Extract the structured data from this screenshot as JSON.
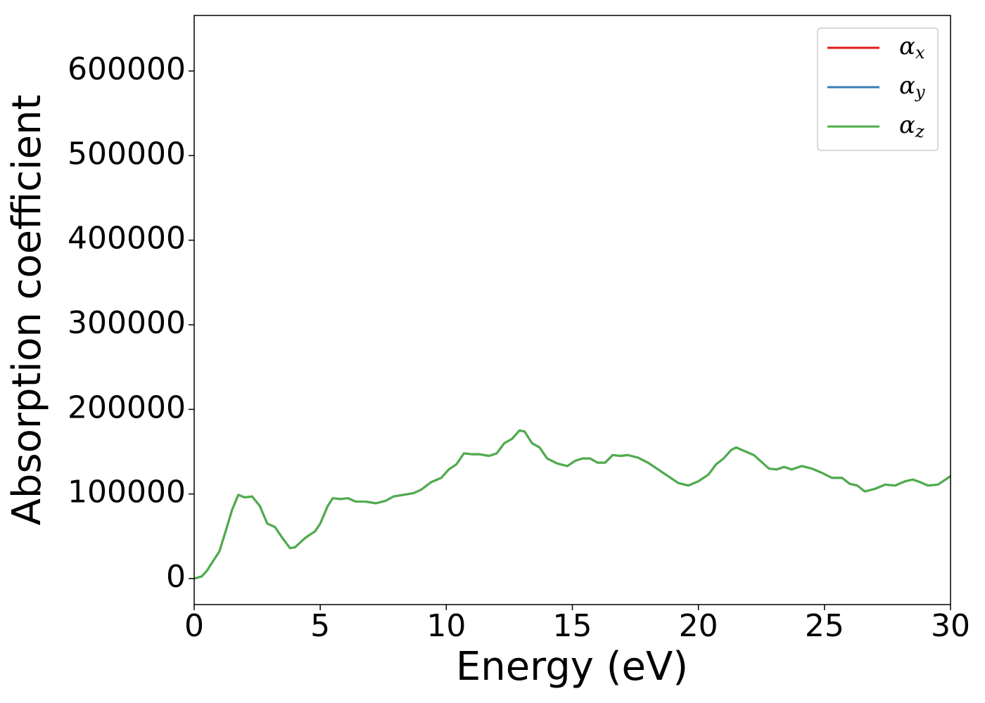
{
  "chart_data": {
    "type": "line",
    "xlabel": "Energy (eV)",
    "ylabel": "Absorption coefficient",
    "x": [
      0,
      0.3,
      0.5,
      0.8,
      1.0,
      1.3,
      1.5,
      1.75,
      2.0,
      2.3,
      2.6,
      2.9,
      3.2,
      3.5,
      3.8,
      4.0,
      4.4,
      4.8,
      5.0,
      5.3,
      5.5,
      5.8,
      6.1,
      6.4,
      6.8,
      7.2,
      7.6,
      7.9,
      8.3,
      8.7,
      9.0,
      9.4,
      9.8,
      10.1,
      10.4,
      10.7,
      11.0,
      11.3,
      11.7,
      12.0,
      12.3,
      12.6,
      12.9,
      13.1,
      13.4,
      13.7,
      14.0,
      14.4,
      14.8,
      15.1,
      15.4,
      15.7,
      16.0,
      16.3,
      16.6,
      16.9,
      17.2,
      17.6,
      18.0,
      18.4,
      18.8,
      19.2,
      19.6,
      20.0,
      20.4,
      20.7,
      21.0,
      21.3,
      21.5,
      21.8,
      22.2,
      22.5,
      22.8,
      23.1,
      23.4,
      23.7,
      24.1,
      24.5,
      24.9,
      25.3,
      25.7,
      26.0,
      26.3,
      26.6,
      27.0,
      27.4,
      27.8,
      28.2,
      28.5,
      28.8,
      29.1,
      29.5,
      30.0
    ],
    "series": [
      {
        "name": "αx",
        "color": "#e41a1c",
        "values": [
          0,
          2500,
          9000,
          23000,
          32000,
          61000,
          81000,
          99000,
          96000,
          97000,
          86000,
          65000,
          61000,
          48000,
          36000,
          37000,
          48000,
          56000,
          65000,
          86000,
          95000,
          94000,
          95000,
          91000,
          91000,
          89000,
          92000,
          97000,
          99000,
          101000,
          105000,
          114000,
          119000,
          129000,
          135000,
          148000,
          147000,
          147000,
          145000,
          148000,
          160000,
          165000,
          175000,
          174000,
          160000,
          155000,
          142000,
          136000,
          133000,
          139000,
          142000,
          142000,
          137000,
          137000,
          146000,
          145000,
          146000,
          143000,
          137000,
          129000,
          121000,
          113000,
          110000,
          115000,
          123000,
          135000,
          142000,
          152000,
          155000,
          151000,
          146000,
          138000,
          130000,
          129000,
          132000,
          129000,
          133000,
          130000,
          125000,
          119000,
          119000,
          112000,
          110000,
          103000,
          106000,
          111000,
          110000,
          115000,
          117000,
          114000,
          110000,
          111000,
          121000
        ]
      },
      {
        "name": "αy",
        "color": "#377eb8",
        "values": [
          0,
          2500,
          9000,
          23000,
          32000,
          61000,
          81000,
          99000,
          96000,
          97000,
          86000,
          65000,
          61000,
          48000,
          36000,
          37000,
          48000,
          56000,
          65000,
          86000,
          95000,
          94000,
          95000,
          91000,
          91000,
          89000,
          92000,
          97000,
          99000,
          101000,
          105000,
          114000,
          119000,
          129000,
          135000,
          148000,
          147000,
          147000,
          145000,
          148000,
          160000,
          165000,
          175000,
          174000,
          160000,
          155000,
          142000,
          136000,
          133000,
          139000,
          142000,
          142000,
          137000,
          137000,
          146000,
          145000,
          146000,
          143000,
          137000,
          129000,
          121000,
          113000,
          110000,
          115000,
          123000,
          135000,
          142000,
          152000,
          155000,
          151000,
          146000,
          138000,
          130000,
          129000,
          132000,
          129000,
          133000,
          130000,
          125000,
          119000,
          119000,
          112000,
          110000,
          103000,
          106000,
          111000,
          110000,
          115000,
          117000,
          114000,
          110000,
          111000,
          121000
        ]
      },
      {
        "name": "αz",
        "color": "#4daf4a",
        "values": [
          0,
          2500,
          9000,
          23000,
          32000,
          61000,
          81000,
          99000,
          96000,
          97000,
          86000,
          65000,
          61000,
          48000,
          36000,
          37000,
          48000,
          56000,
          65000,
          86000,
          95000,
          94000,
          95000,
          91000,
          91000,
          89000,
          92000,
          97000,
          99000,
          101000,
          105000,
          114000,
          119000,
          129000,
          135000,
          148000,
          147000,
          147000,
          145000,
          148000,
          160000,
          165000,
          175000,
          174000,
          160000,
          155000,
          142000,
          136000,
          133000,
          139000,
          142000,
          142000,
          137000,
          137000,
          146000,
          145000,
          146000,
          143000,
          137000,
          129000,
          121000,
          113000,
          110000,
          115000,
          123000,
          135000,
          142000,
          152000,
          155000,
          151000,
          146000,
          138000,
          130000,
          129000,
          132000,
          129000,
          133000,
          130000,
          125000,
          119000,
          119000,
          112000,
          110000,
          103000,
          106000,
          111000,
          110000,
          115000,
          117000,
          114000,
          110000,
          111000,
          121000
        ]
      }
    ],
    "xlim": [
      0,
      30
    ],
    "xticks": [
      0,
      5,
      10,
      15,
      20,
      25,
      30
    ],
    "ylim": [
      -30750,
      665650
    ],
    "yticks": [
      0,
      100000,
      200000,
      300000,
      400000,
      500000,
      600000
    ],
    "grid": false,
    "legend": "upper right"
  }
}
